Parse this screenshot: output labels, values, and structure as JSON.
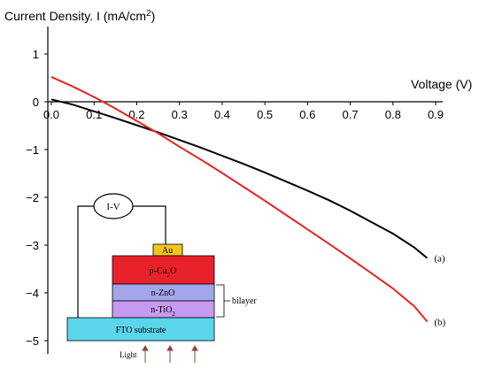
{
  "chart_data": {
    "type": "line",
    "ylabel_text": "Current Density. I (mA/cm",
    "ylabel_sup": "2",
    "ylabel_close": ")",
    "xlabel": "Voltage (V)",
    "x_ticks": [
      "0.0",
      "0.1",
      "0.2",
      "0.3",
      "0.4",
      "0.5",
      "0.6",
      "0.7",
      "0.8",
      "0.9"
    ],
    "y_ticks": [
      "1",
      "0",
      "−1",
      "−2",
      "−3",
      "−4",
      "−5"
    ],
    "xlim": [
      0,
      0.9
    ],
    "ylim": [
      -5,
      1.4
    ],
    "grid": false,
    "series": [
      {
        "name": "(a)",
        "color": "#000000",
        "x": [
          0.0,
          0.05,
          0.1,
          0.15,
          0.2,
          0.25,
          0.3,
          0.35,
          0.4,
          0.45,
          0.5,
          0.55,
          0.6,
          0.65,
          0.7,
          0.75,
          0.8,
          0.85,
          0.88
        ],
        "y": [
          0.05,
          -0.06,
          -0.2,
          -0.34,
          -0.49,
          -0.64,
          -0.8,
          -0.96,
          -1.13,
          -1.3,
          -1.48,
          -1.67,
          -1.86,
          -2.06,
          -2.28,
          -2.52,
          -2.76,
          -3.05,
          -3.27
        ]
      },
      {
        "name": "(b)",
        "color": "#e8231e",
        "x": [
          0.0,
          0.05,
          0.1,
          0.15,
          0.2,
          0.25,
          0.3,
          0.35,
          0.4,
          0.45,
          0.5,
          0.55,
          0.6,
          0.65,
          0.7,
          0.75,
          0.8,
          0.85,
          0.88
        ],
        "y": [
          0.52,
          0.32,
          0.1,
          -0.14,
          -0.4,
          -0.66,
          -0.94,
          -1.21,
          -1.49,
          -1.78,
          -2.07,
          -2.37,
          -2.67,
          -2.97,
          -3.28,
          -3.59,
          -3.91,
          -4.28,
          -4.6
        ]
      }
    ]
  },
  "inset": {
    "meter_label": "I-V",
    "layers": {
      "au": {
        "label": "Au",
        "color": "#f2c41d"
      },
      "cu2o": {
        "label": "p-Cu",
        "sub": "2",
        "after": "O",
        "color": "#e8222b"
      },
      "zno": {
        "label": "n-ZnO",
        "color": "#a2a6ea"
      },
      "tio2": {
        "label": "n-TiO",
        "sub": "2",
        "color": "#c79af1"
      },
      "fto": {
        "label": "FTO substrate",
        "color": "#5bd5ea"
      }
    },
    "bilayer_label": "bilayer",
    "light_label": "Light"
  }
}
